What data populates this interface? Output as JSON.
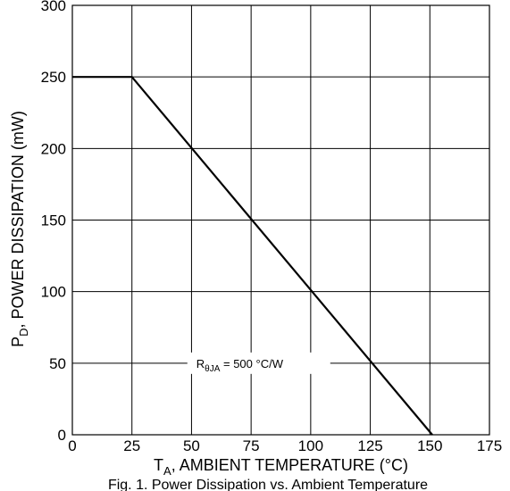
{
  "chart_data": {
    "type": "line",
    "x": [
      0,
      25,
      151
    ],
    "series": [
      {
        "values": [
          250,
          250,
          0
        ]
      }
    ],
    "xlabel": {
      "main": "T",
      "sub": "A",
      "rest": ", AMBIENT TEMPERATURE (°C)"
    },
    "ylabel": {
      "main": "P",
      "sub": "D",
      "rest": ", POWER DISSIPATION (mW)"
    },
    "xticks": [
      0,
      25,
      50,
      75,
      100,
      125,
      150,
      175
    ],
    "yticks": [
      0,
      50,
      100,
      150,
      200,
      250,
      300
    ],
    "xlim": [
      0,
      175
    ],
    "ylim": [
      0,
      300
    ],
    "grid": true,
    "annotation": {
      "main": "R",
      "sub": "θJA",
      "rest": " = 500 °C/W",
      "x": 52,
      "y": 50
    },
    "caption": "Fig. 1. Power Dissipation vs. Ambient Temperature",
    "colors": {
      "line": "#000000",
      "grid": "#000000",
      "background": "#ffffff"
    }
  }
}
